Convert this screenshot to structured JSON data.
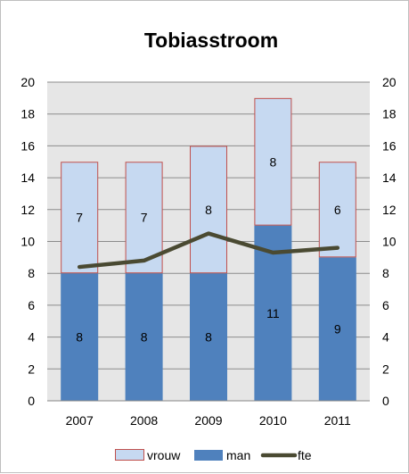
{
  "chart_data": {
    "type": "bar",
    "stacked": true,
    "title": "Tobiasstroom",
    "categories": [
      "2007",
      "2008",
      "2009",
      "2010",
      "2011"
    ],
    "series": [
      {
        "name": "man",
        "kind": "bar",
        "values": [
          8,
          8,
          8,
          11,
          9
        ],
        "color": "#4f81bd"
      },
      {
        "name": "vrouw",
        "kind": "bar",
        "values": [
          7,
          7,
          8,
          8,
          6
        ],
        "color": "#c6d9f1",
        "border_color": "#c0504d"
      },
      {
        "name": "fte",
        "kind": "line",
        "values": [
          8.4,
          8.8,
          10.5,
          9.3,
          9.6
        ],
        "color": "#4a4a32"
      }
    ],
    "ylim": [
      0,
      20
    ],
    "yticks": [
      "0",
      "2",
      "4",
      "6",
      "8",
      "10",
      "12",
      "14",
      "16",
      "18",
      "20"
    ],
    "y2ticks": [
      "0",
      "2",
      "4",
      "6",
      "8",
      "10",
      "12",
      "14",
      "16",
      "18",
      "20"
    ],
    "grid": true,
    "plot_background": "#e6e6e6",
    "legend": {
      "position": "bottom",
      "entries": [
        "vrouw",
        "man",
        "fte"
      ]
    }
  }
}
